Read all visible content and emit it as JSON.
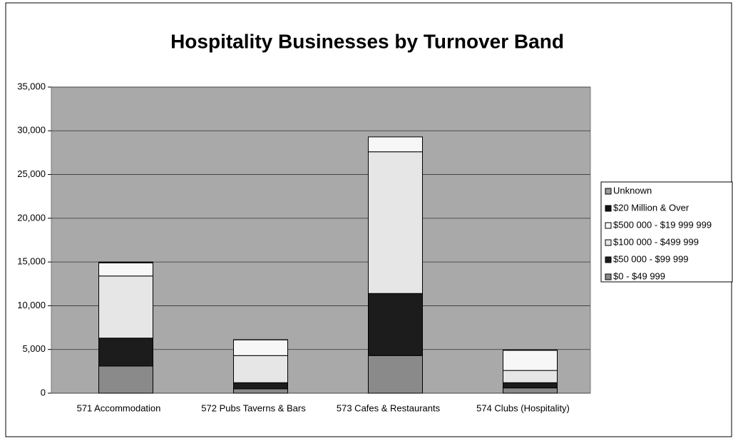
{
  "chart_data": {
    "type": "stacked_bar",
    "title": "Hospitality Businesses by Turnover Band",
    "categories": [
      "571 Accommodation",
      "572 Pubs Taverns & Bars",
      "573 Cafes & Restaurants",
      "574 Clubs (Hospitality)"
    ],
    "series": [
      {
        "name": "$0  -  $49 999",
        "color": "#8a8a8a",
        "values": [
          3100,
          500,
          4300,
          600
        ]
      },
      {
        "name": "$50 000  -  $99 999",
        "color": "#1c1c1c",
        "values": [
          3200,
          700,
          7100,
          600
        ]
      },
      {
        "name": "$100 000  - $499 999",
        "color": "#e6e6e6",
        "values": [
          7100,
          3100,
          16200,
          1400
        ]
      },
      {
        "name": "$500 000  - $19 999 999",
        "color": "#f7f7f7",
        "values": [
          1500,
          1800,
          1700,
          2300
        ]
      },
      {
        "name": "$20 Million & Over",
        "color": "#111111",
        "values": [
          50,
          0,
          0,
          50
        ]
      },
      {
        "name": "Unknown",
        "color": "#9a9a9a",
        "values": [
          50,
          20,
          0,
          0
        ]
      }
    ],
    "ylim": [
      0,
      35000
    ],
    "yticks": [
      0,
      {
        "value": 5000,
        "label": "5,000"
      },
      {
        "value": 10000,
        "label": "10,000"
      },
      {
        "value": 15000,
        "label": "15,000"
      },
      {
        "value": 20000,
        "label": "20,000"
      },
      {
        "value": 25000,
        "label": "25,000"
      },
      {
        "value": 30000,
        "label": "30,000"
      },
      {
        "value": 35000,
        "label": "35,000"
      }
    ],
    "grid": true,
    "legend": "right"
  }
}
